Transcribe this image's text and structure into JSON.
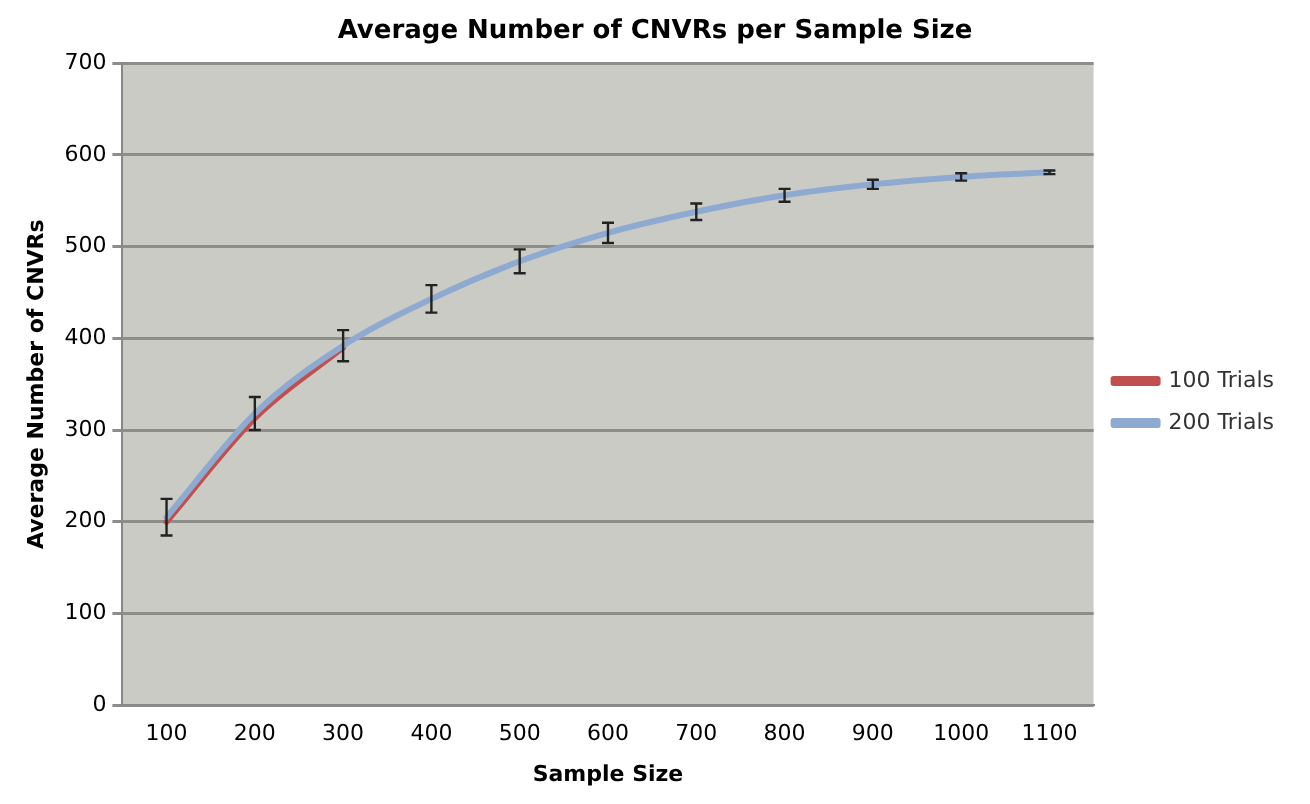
{
  "chart_data": {
    "type": "line",
    "title": "Average Number of CNVRs per Sample Size",
    "xlabel": "Sample Size",
    "ylabel": "Average Number of CNVRs",
    "categories": [
      "100",
      "200",
      "300",
      "400",
      "500",
      "600",
      "700",
      "800",
      "900",
      "1000",
      "1100"
    ],
    "series": [
      {
        "name": "100 Trials",
        "color": "#c0504d",
        "values": [
          200,
          313,
          390,
          null,
          null,
          null,
          null,
          null,
          null,
          null,
          null
        ]
      },
      {
        "name": "200 Trials",
        "color": "#8eaad0",
        "values": [
          205,
          318,
          392,
          443,
          484,
          515,
          538,
          556,
          568,
          576,
          581
        ],
        "errors": [
          20,
          18,
          17,
          15,
          13,
          11,
          9,
          7,
          5,
          4,
          2
        ]
      }
    ],
    "ylim": [
      0,
      700
    ],
    "yticks": [
      0,
      100,
      200,
      300,
      400,
      500,
      600,
      700
    ],
    "grid": "y",
    "legend": "right",
    "marker": "none"
  }
}
